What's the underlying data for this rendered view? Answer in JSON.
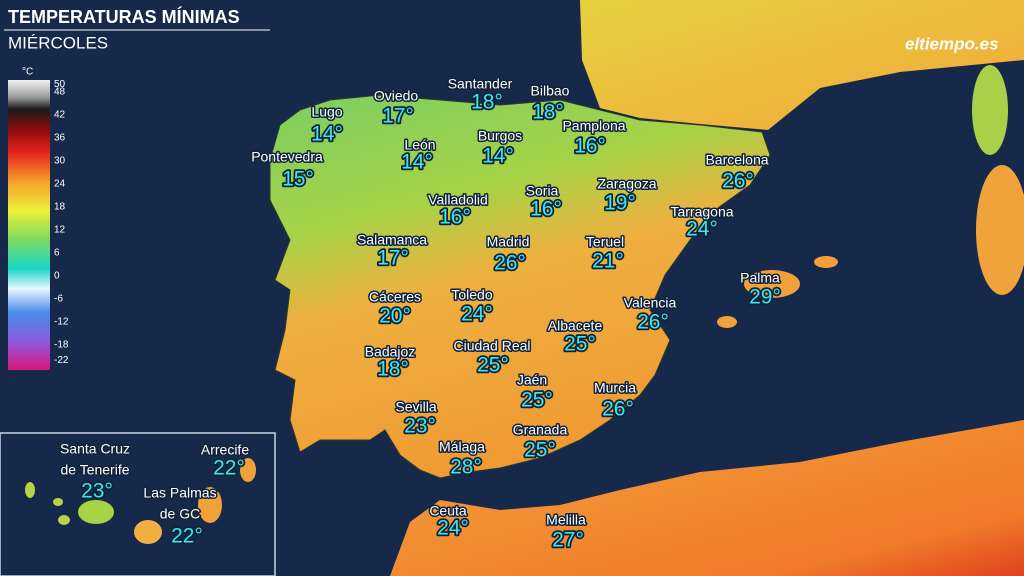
{
  "header": {
    "title": "TEMPERATURAS MÍNIMAS",
    "subtitle": "MIÉRCOLES",
    "logo": "eltiempo.es"
  },
  "legend": {
    "unit": "°C",
    "values": [
      50,
      48,
      42,
      36,
      30,
      24,
      18,
      12,
      6,
      0,
      -6,
      -12,
      -18,
      -22
    ]
  },
  "cities": [
    {
      "name": "Lugo",
      "temp": "14°"
    },
    {
      "name": "Oviedo",
      "temp": "17°"
    },
    {
      "name": "Santander",
      "temp": "18°"
    },
    {
      "name": "Bilbao",
      "temp": "18°"
    },
    {
      "name": "Pamplona",
      "temp": "16°"
    },
    {
      "name": "León",
      "temp": "14°"
    },
    {
      "name": "Burgos",
      "temp": "14°"
    },
    {
      "name": "Pontevedra",
      "temp": "15°"
    },
    {
      "name": "Barcelona",
      "temp": "26°"
    },
    {
      "name": "Zaragoza",
      "temp": "19°"
    },
    {
      "name": "Valladolid",
      "temp": "16°"
    },
    {
      "name": "Soria",
      "temp": "16°"
    },
    {
      "name": "Tarragona",
      "temp": "24°"
    },
    {
      "name": "Salamanca",
      "temp": "17°"
    },
    {
      "name": "Madrid",
      "temp": "26°"
    },
    {
      "name": "Teruel",
      "temp": "21°"
    },
    {
      "name": "Palma",
      "temp": "29°"
    },
    {
      "name": "Cáceres",
      "temp": "20°"
    },
    {
      "name": "Toledo",
      "temp": "24°"
    },
    {
      "name": "Valencia",
      "temp": "26°"
    },
    {
      "name": "Albacete",
      "temp": "25°"
    },
    {
      "name": "Ciudad Real",
      "temp": "25°"
    },
    {
      "name": "Badajoz",
      "temp": "18°"
    },
    {
      "name": "Jaén",
      "temp": "25°"
    },
    {
      "name": "Murcia",
      "temp": "26°"
    },
    {
      "name": "Sevilla",
      "temp": "23°"
    },
    {
      "name": "Granada",
      "temp": "25°"
    },
    {
      "name": "Málaga",
      "temp": "28°"
    },
    {
      "name": "Ceuta",
      "temp": "24°"
    },
    {
      "name": "Melilla",
      "temp": "27°"
    }
  ],
  "canarias": [
    {
      "name": [
        "Santa Cruz",
        "de Tenerife"
      ],
      "temp": "23°"
    },
    {
      "name": [
        "Arrecife"
      ],
      "temp": "22°"
    },
    {
      "name": [
        "Las Palmas",
        "de GC"
      ],
      "temp": "22°"
    }
  ]
}
